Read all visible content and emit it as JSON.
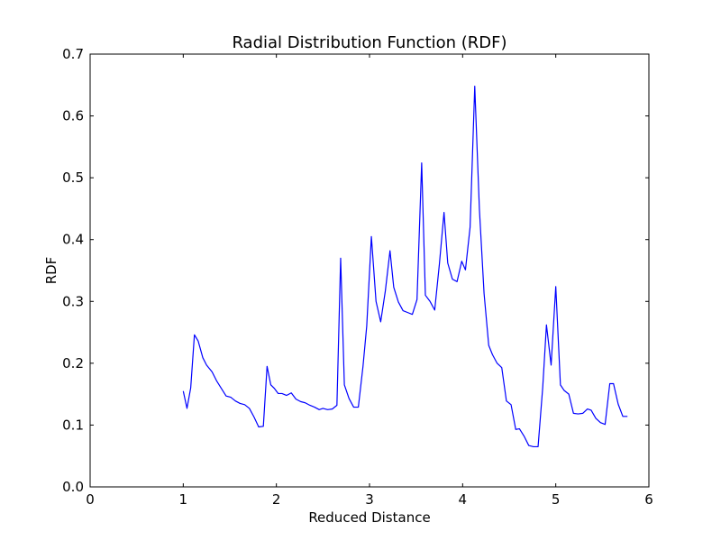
{
  "chart_data": {
    "type": "line",
    "title": "Radial Distribution Function (RDF)",
    "xlabel": "Reduced Distance",
    "ylabel": "RDF",
    "xlim": [
      0,
      6
    ],
    "ylim": [
      0,
      0.7
    ],
    "xticks": [
      "0",
      "1",
      "2",
      "3",
      "4",
      "5",
      "6"
    ],
    "yticks": [
      "0.0",
      "0.1",
      "0.2",
      "0.3",
      "0.4",
      "0.5",
      "0.6",
      "0.7"
    ],
    "grid": false,
    "legend": "none",
    "line_color": "#0000ff",
    "series": [
      {
        "x": [
          1.0,
          1.04,
          1.08,
          1.12,
          1.16,
          1.21,
          1.25,
          1.31,
          1.36,
          1.41,
          1.46,
          1.51,
          1.56,
          1.61,
          1.66,
          1.71,
          1.76,
          1.81,
          1.86,
          1.9,
          1.94,
          1.98,
          2.02,
          2.06,
          2.11,
          2.16,
          2.21,
          2.26,
          2.31,
          2.36,
          2.41,
          2.46,
          2.5,
          2.55,
          2.6,
          2.65,
          2.69,
          2.73,
          2.78,
          2.83,
          2.88,
          2.93,
          2.97,
          3.02,
          3.07,
          3.12,
          3.17,
          3.22,
          3.26,
          3.31,
          3.36,
          3.41,
          3.46,
          3.51,
          3.56,
          3.6,
          3.65,
          3.7,
          3.75,
          3.8,
          3.84,
          3.89,
          3.94,
          3.99,
          4.03,
          4.08,
          4.13,
          4.18,
          4.23,
          4.28,
          4.32,
          4.37,
          4.42,
          4.47,
          4.52,
          4.57,
          4.61,
          4.66,
          4.71,
          4.76,
          4.81,
          4.86,
          4.9,
          4.95,
          5.0,
          5.05,
          5.09,
          5.14,
          5.19,
          5.24,
          5.29,
          5.34,
          5.38,
          5.43,
          5.48,
          5.53,
          5.58,
          5.62,
          5.67,
          5.72,
          5.77
        ],
        "y": [
          0.155,
          0.127,
          0.16,
          0.246,
          0.236,
          0.209,
          0.197,
          0.186,
          0.171,
          0.159,
          0.147,
          0.145,
          0.139,
          0.135,
          0.133,
          0.127,
          0.113,
          0.097,
          0.098,
          0.195,
          0.165,
          0.159,
          0.151,
          0.151,
          0.148,
          0.152,
          0.142,
          0.138,
          0.136,
          0.132,
          0.129,
          0.125,
          0.127,
          0.125,
          0.126,
          0.132,
          0.37,
          0.165,
          0.143,
          0.129,
          0.129,
          0.195,
          0.26,
          0.405,
          0.3,
          0.267,
          0.317,
          0.382,
          0.323,
          0.299,
          0.285,
          0.282,
          0.279,
          0.303,
          0.524,
          0.31,
          0.3,
          0.286,
          0.36,
          0.444,
          0.362,
          0.336,
          0.332,
          0.365,
          0.351,
          0.42,
          0.648,
          0.449,
          0.313,
          0.229,
          0.214,
          0.2,
          0.193,
          0.139,
          0.133,
          0.093,
          0.094,
          0.082,
          0.067,
          0.065,
          0.065,
          0.161,
          0.262,
          0.197,
          0.324,
          0.165,
          0.156,
          0.15,
          0.119,
          0.118,
          0.119,
          0.126,
          0.124,
          0.111,
          0.104,
          0.101,
          0.167,
          0.167,
          0.134,
          0.114,
          0.114
        ]
      }
    ]
  }
}
